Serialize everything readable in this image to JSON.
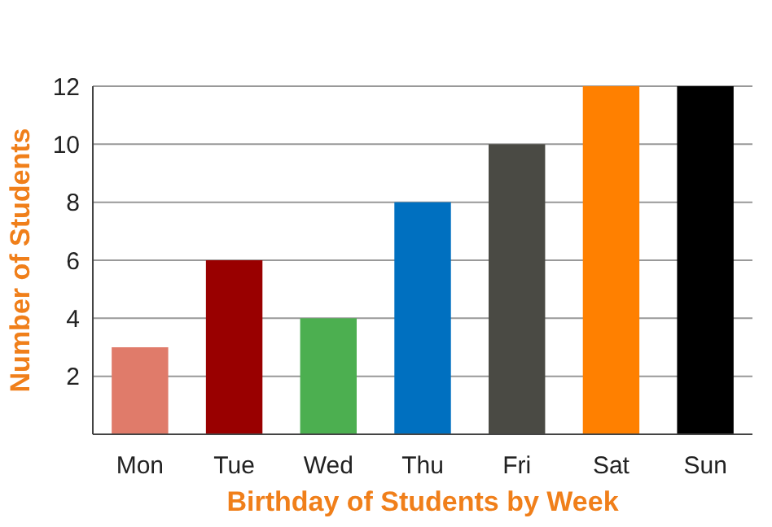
{
  "chart_data": {
    "type": "bar",
    "xlabel": "Birthday of Students by Week",
    "ylabel": "Number of Students",
    "categories": [
      "Mon",
      "Tue",
      "Wed",
      "Thu",
      "Fri",
      "Sat",
      "Sun"
    ],
    "values": [
      3,
      6,
      4,
      8,
      10,
      12,
      12
    ],
    "colors": [
      "#e07b6a",
      "#990000",
      "#4caf50",
      "#0070c0",
      "#4a4a44",
      "#ff8000",
      "#000000"
    ],
    "ylim": [
      0,
      12
    ],
    "yticks": [
      2,
      4,
      6,
      8,
      10,
      12
    ],
    "grid": "y"
  }
}
